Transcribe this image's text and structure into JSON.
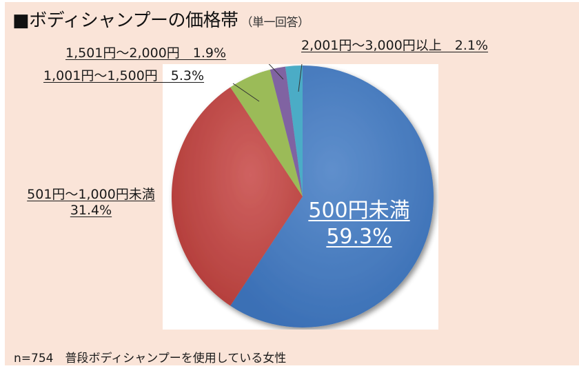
{
  "title": {
    "main": "■ボディシャンプーの価格帯",
    "sub": "（単一回答）"
  },
  "footnote": "n=754　普段ボディシャンプーを使用している女性",
  "labels": {
    "s500": {
      "line1": "500円未満",
      "line2": "59.3%"
    },
    "s1000": {
      "line1": "501円～1,000円未満",
      "line2": "31.4%"
    },
    "s1500": "1,001円～1,500円　5.3%",
    "s2000": "1,501円～2,000円　1.9%",
    "s3000": "2,001円～3,000円以上　2.1%"
  },
  "chart_data": {
    "type": "pie",
    "title": "■ボディシャンプーの価格帯（単一回答）",
    "categories": [
      "500円未満",
      "501円～1,000円未満",
      "1,001円～1,500円",
      "1,501円～2,000円",
      "2,001円～3,000円以上"
    ],
    "values": [
      59.3,
      31.4,
      5.3,
      1.9,
      2.1
    ],
    "unit": "%",
    "colors": [
      "#4f81bd",
      "#c0504d",
      "#9bbb59",
      "#8064a2",
      "#4bacc6"
    ],
    "start_angle_deg": 0,
    "direction": "clockwise",
    "note": "n=754　普段ボディシャンプーを使用している女性",
    "legend": "none (data labels with leader lines)"
  }
}
